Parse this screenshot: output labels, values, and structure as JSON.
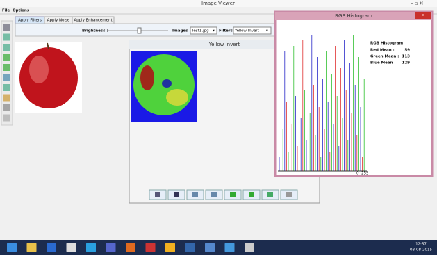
{
  "window": {
    "title": "Image Viewer"
  },
  "menu": [
    "File",
    "Options"
  ],
  "tabs": [
    "Apply Filters",
    "Apply Noise",
    "Apply Enhancement"
  ],
  "toolbar": {
    "brightness_label": "Brightness :",
    "images_label": "Images :",
    "image_file": "Test1.jpg",
    "filters_label": "Filters :",
    "filter": "Yellow Invert"
  },
  "filter_window": {
    "title": "Yellow Invert"
  },
  "histogram_window": {
    "title": "RGB Histogram",
    "heading": "RGB Histogram",
    "stats": [
      {
        "label": "Red Mean :",
        "value": 59
      },
      {
        "label": "Green Mean :",
        "value": 113
      },
      {
        "label": "Blue Mean :",
        "value": 129
      }
    ],
    "axis_min": 0,
    "axis_max": 255
  },
  "taskbar": {
    "time": "12:57",
    "date": "08-08-2015"
  }
}
